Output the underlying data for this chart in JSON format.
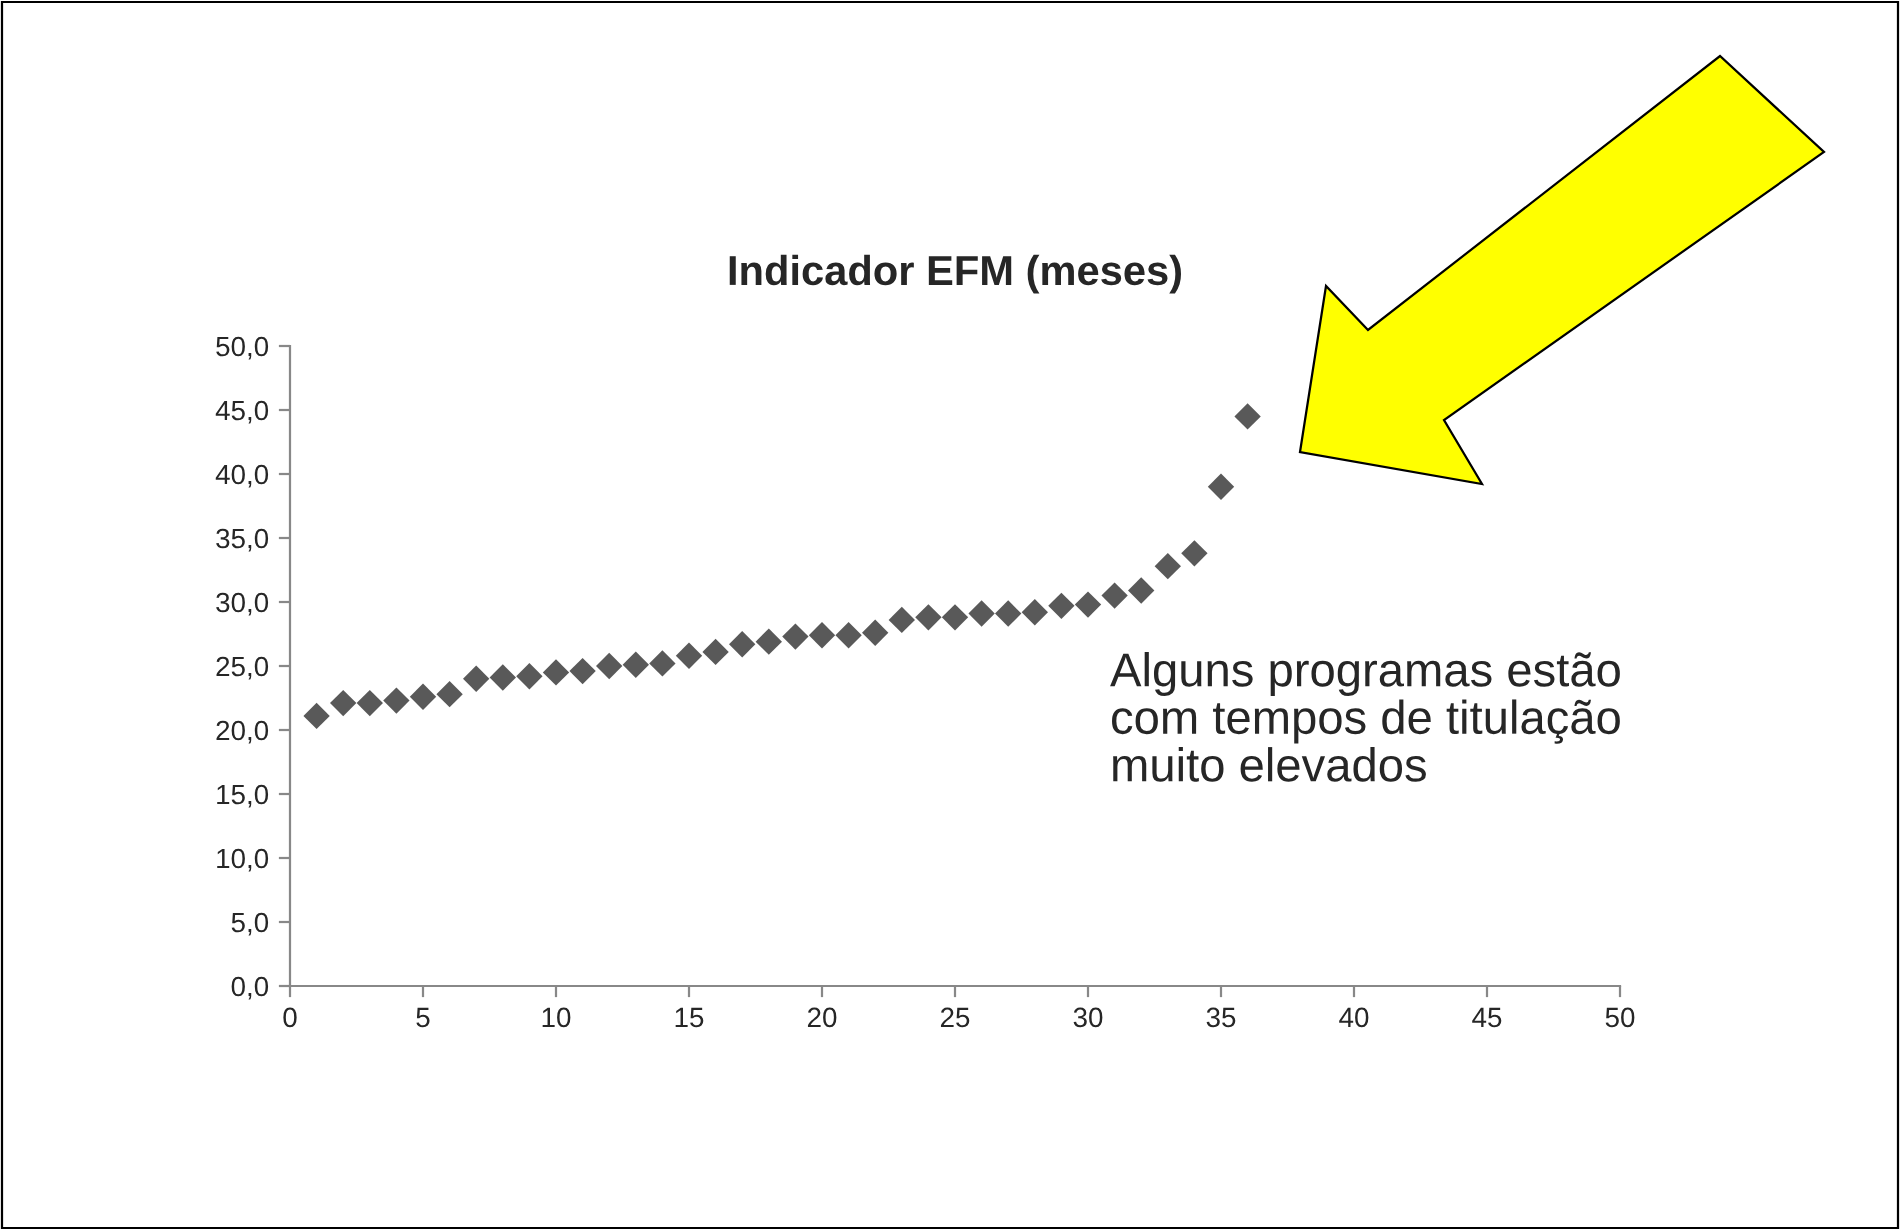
{
  "chart_data": {
    "type": "scatter",
    "title": "Indicador EFM (meses)",
    "x": [
      1,
      2,
      3,
      4,
      5,
      6,
      7,
      8,
      9,
      10,
      11,
      12,
      13,
      14,
      15,
      16,
      17,
      18,
      19,
      20,
      21,
      22,
      23,
      24,
      25,
      26,
      27,
      28,
      29,
      30,
      31,
      32,
      33,
      34,
      35,
      36
    ],
    "series": [
      {
        "color": "#595959",
        "values": [
          21.1,
          22.1,
          22.1,
          22.3,
          22.6,
          22.8,
          24.0,
          24.1,
          24.2,
          24.5,
          24.6,
          25.0,
          25.1,
          25.2,
          25.8,
          26.1,
          26.7,
          26.9,
          27.3,
          27.4,
          27.4,
          27.6,
          28.6,
          28.8,
          28.8,
          29.1,
          29.1,
          29.2,
          29.7,
          29.8,
          30.5,
          30.9,
          32.8,
          33.8,
          39.0,
          44.5
        ]
      }
    ],
    "marker": "diamond",
    "xlim": [
      0,
      50
    ],
    "xticks": [
      0,
      5,
      10,
      15,
      20,
      25,
      30,
      35,
      40,
      45,
      50
    ],
    "ylim": [
      0,
      50
    ],
    "yticks": [
      {
        "value": 0,
        "label": "0,0"
      },
      {
        "value": 5,
        "label": "5,0"
      },
      {
        "value": 10,
        "label": "10,0"
      },
      {
        "value": 15,
        "label": "15,0"
      },
      {
        "value": 20,
        "label": "20,0"
      },
      {
        "value": 25,
        "label": "25,0"
      },
      {
        "value": 30,
        "label": "30,0"
      },
      {
        "value": 35,
        "label": "35,0"
      },
      {
        "value": 40,
        "label": "40,0"
      },
      {
        "value": 45,
        "label": "45,0"
      },
      {
        "value": 50,
        "label": "50,0"
      }
    ],
    "grid": false,
    "legend": false,
    "annotations": [
      "Alguns programas estão\ncom tempos de titulação\nmuito elevados"
    ]
  }
}
